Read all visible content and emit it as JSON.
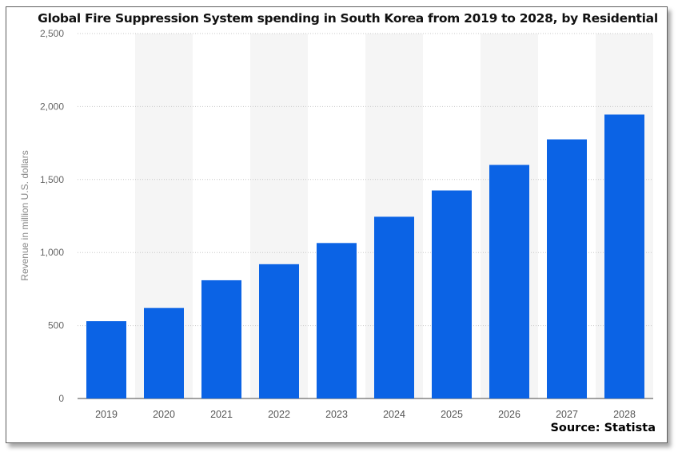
{
  "chart_data": {
    "type": "bar",
    "title": "Global Fire Suppression System spending in South Korea from 2019 to 2028, by Residential",
    "xlabel": "",
    "ylabel": "Revenue in million U.S. dollars",
    "categories": [
      "2019",
      "2020",
      "2021",
      "2022",
      "2023",
      "2024",
      "2025",
      "2026",
      "2027",
      "2028"
    ],
    "values": [
      530,
      620,
      810,
      920,
      1065,
      1245,
      1425,
      1600,
      1775,
      1945
    ],
    "ylim": [
      0,
      2500
    ],
    "yticks": [
      0,
      500,
      1000,
      1500,
      2000,
      2500
    ],
    "ytick_labels": [
      "0",
      "500",
      "1,000",
      "1,500",
      "2,000",
      "2,500"
    ],
    "grid": true,
    "bar_color": "#0b63e5",
    "band_color": "#f5f5f5",
    "source": "Source: Statista"
  }
}
